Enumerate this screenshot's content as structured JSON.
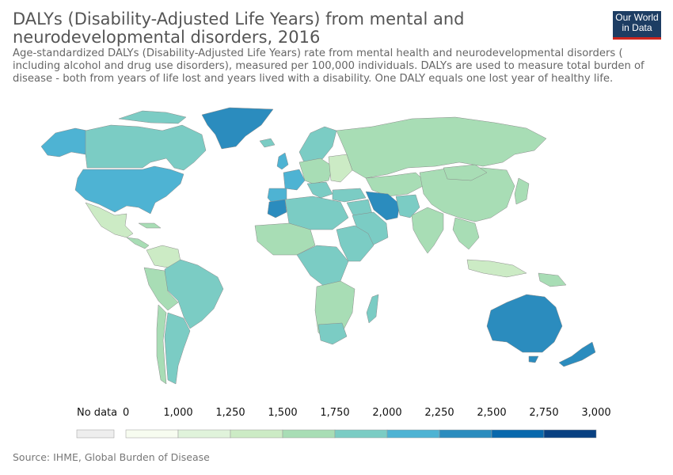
{
  "header": {
    "title_line1": "DALYs (Disability-Adjusted Life Years) from mental and",
    "title_line2": "neurodevelopmental disorders, 2016",
    "subtitle_line1": "Age-standardized DALYs (Disability-Adjusted Life Years) rate from mental health and neurodevelopmental disorders (",
    "subtitle_line2": "including alcohol and drug use disorders), measured per 100,000 individuals. DALYs are used to measure total burden of",
    "subtitle_line3": "disease - both from years of life lost and years lived with a disability. One DALY equals one lost year of healthy life."
  },
  "logo": {
    "line1": "Our World",
    "line2": "in Data",
    "bg_color": "#1d3d63",
    "accent_color": "#ce261e"
  },
  "legend": {
    "no_data_label": "No data",
    "no_data_color": "#eeeeee",
    "ticks": [
      "0",
      "1,000",
      "1,250",
      "1,500",
      "1,750",
      "2,000",
      "2,250",
      "2,500",
      "2,750",
      "3,000"
    ],
    "bins": [
      {
        "from": 0,
        "to": 1000,
        "color": "#f7fcf0"
      },
      {
        "from": 1000,
        "to": 1250,
        "color": "#e0f3db"
      },
      {
        "from": 1250,
        "to": 1500,
        "color": "#ccebc5"
      },
      {
        "from": 1500,
        "to": 1750,
        "color": "#a8ddb5"
      },
      {
        "from": 1750,
        "to": 2000,
        "color": "#7bccc4"
      },
      {
        "from": 2000,
        "to": 2250,
        "color": "#4eb3d3"
      },
      {
        "from": 2250,
        "to": 2500,
        "color": "#2b8cbe"
      },
      {
        "from": 2500,
        "to": 2750,
        "color": "#0868ac"
      },
      {
        "from": 2750,
        "to": 3000,
        "color": "#084081"
      }
    ]
  },
  "source": "Source: IHME, Global Burden of Disease"
}
